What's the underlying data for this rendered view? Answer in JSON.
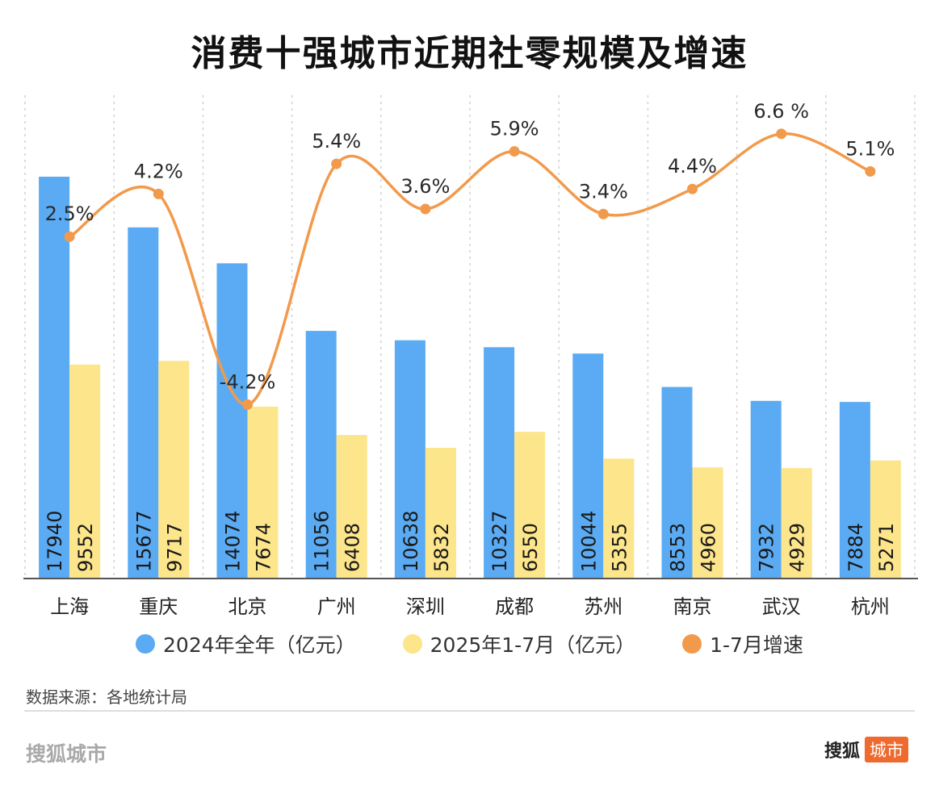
{
  "title": "消费十强城市近期社零规模及增速",
  "chart_data": {
    "type": "bar",
    "categories": [
      "上海",
      "重庆",
      "北京",
      "广州",
      "深圳",
      "成都",
      "苏州",
      "南京",
      "武汉",
      "杭州"
    ],
    "series": [
      {
        "name": "2024年全年（亿元）",
        "type": "bar",
        "color": "#5aabf3",
        "values": [
          17940,
          15677,
          14074,
          11056,
          10638,
          10327,
          10044,
          8553,
          7932,
          7884
        ]
      },
      {
        "name": "2025年1-7月（亿元）",
        "type": "bar",
        "color": "#fce58a",
        "values": [
          9552,
          9717,
          7674,
          6408,
          5832,
          6550,
          5355,
          4960,
          4929,
          5271
        ]
      },
      {
        "name": "1-7月增速",
        "type": "line",
        "color": "#f29a4b",
        "values": [
          2.5,
          4.2,
          -4.2,
          5.4,
          3.6,
          5.9,
          3.4,
          4.4,
          6.6,
          5.1
        ],
        "labels": [
          "2.5%",
          "4.2%",
          "-4.2%",
          "5.4%",
          "3.6%",
          "5.9%",
          "3.4%",
          "4.4%",
          "6.6 %",
          "5.1%"
        ]
      }
    ],
    "grid": "vertical dashed"
  },
  "source": "数据来源：各地统计局",
  "footer": {
    "left": "搜狐城市",
    "brand": "搜狐",
    "badge": "城市"
  }
}
